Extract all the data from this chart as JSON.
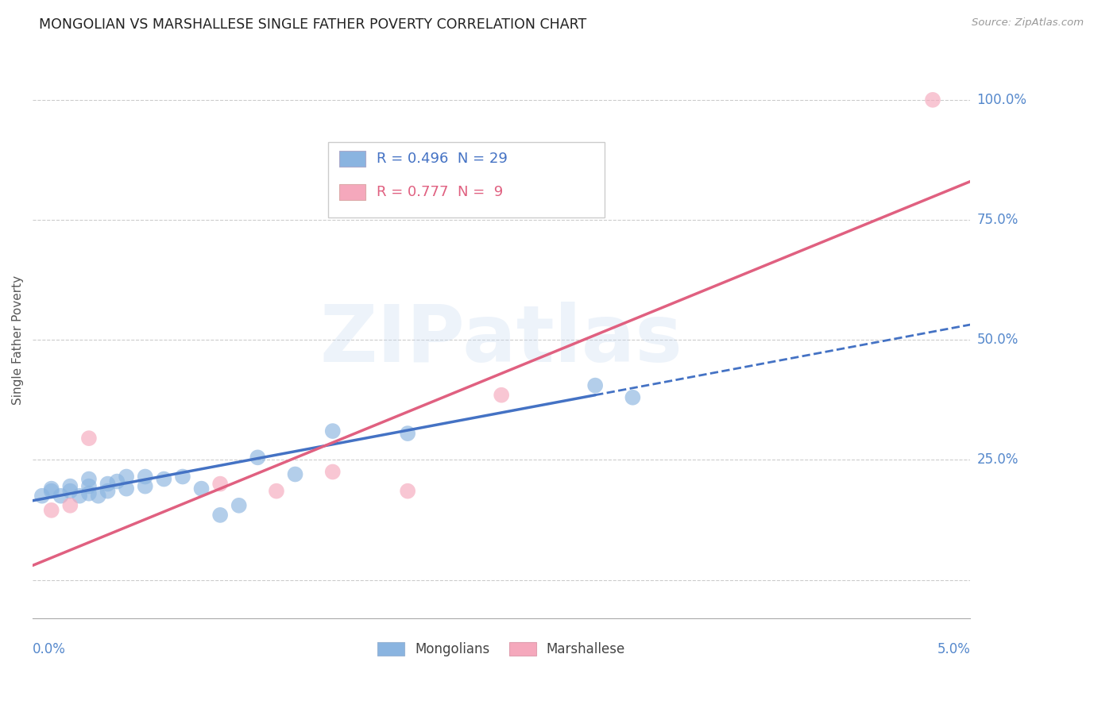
{
  "title": "MONGOLIAN VS MARSHALLESE SINGLE FATHER POVERTY CORRELATION CHART",
  "source": "Source: ZipAtlas.com",
  "ylabel": "Single Father Poverty",
  "x_min": 0.0,
  "x_max": 0.05,
  "y_min": -0.08,
  "y_max": 1.08,
  "y_ticks": [
    0.0,
    0.25,
    0.5,
    0.75,
    1.0
  ],
  "y_tick_labels": [
    "",
    "25.0%",
    "50.0%",
    "75.0%",
    "100.0%"
  ],
  "mongolian_R": 0.496,
  "mongolian_N": 29,
  "marshallese_R": 0.777,
  "marshallese_N": 9,
  "mongolian_color": "#8ab4e0",
  "marshallese_color": "#f5a8bc",
  "mongolian_line_color": "#4472c4",
  "marshallese_line_color": "#e06080",
  "axis_label_color": "#5588cc",
  "watermark_text": "ZIPatlas",
  "mongolian_x": [
    0.0005,
    0.001,
    0.001,
    0.0015,
    0.002,
    0.002,
    0.0025,
    0.003,
    0.003,
    0.003,
    0.0035,
    0.004,
    0.004,
    0.0045,
    0.005,
    0.005,
    0.006,
    0.006,
    0.007,
    0.008,
    0.009,
    0.01,
    0.011,
    0.012,
    0.014,
    0.016,
    0.02,
    0.03,
    0.032
  ],
  "mongolian_y": [
    0.175,
    0.185,
    0.19,
    0.175,
    0.185,
    0.195,
    0.175,
    0.18,
    0.195,
    0.21,
    0.175,
    0.185,
    0.2,
    0.205,
    0.19,
    0.215,
    0.215,
    0.195,
    0.21,
    0.215,
    0.19,
    0.135,
    0.155,
    0.255,
    0.22,
    0.31,
    0.305,
    0.405,
    0.38
  ],
  "marshallese_x": [
    0.001,
    0.002,
    0.003,
    0.01,
    0.013,
    0.016,
    0.02,
    0.025,
    0.048
  ],
  "marshallese_y": [
    0.145,
    0.155,
    0.295,
    0.2,
    0.185,
    0.225,
    0.185,
    0.385,
    1.0
  ],
  "mongolian_line_x0": 0.0,
  "mongolian_line_x1": 0.03,
  "mongolian_line_x2": 0.05,
  "mongolian_line_y0": 0.165,
  "mongolian_line_y1": 0.385,
  "marshallese_line_x0": 0.0,
  "marshallese_line_x1": 0.05,
  "marshallese_line_y0": 0.03,
  "marshallese_line_y1": 0.83
}
